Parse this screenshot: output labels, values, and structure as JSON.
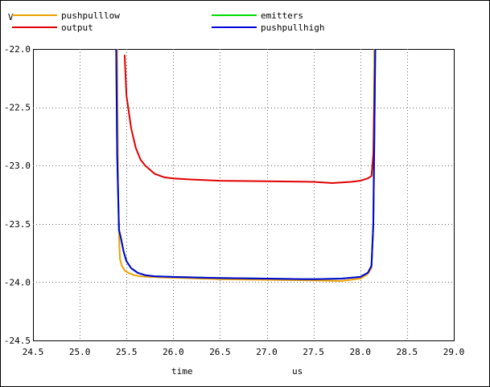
{
  "chart_data": {
    "type": "line",
    "ylabel_unit": "V",
    "xlabel": "time",
    "xunit": "us",
    "xlim": [
      24.5,
      29.0
    ],
    "ylim": [
      -24.5,
      -22.0
    ],
    "xticks": [
      "24.5",
      "25.0",
      "25.5",
      "26.0",
      "26.5",
      "27.0",
      "27.5",
      "28.0",
      "28.5",
      "29.0"
    ],
    "yticks": [
      "-22.0",
      "-22.5",
      "-23.0",
      "-23.5",
      "-24.0",
      "-24.5"
    ],
    "grid": true,
    "legend_position": "top",
    "series": [
      {
        "name": "pushpulllow",
        "color": "#f0a000",
        "x": [
          25.4,
          25.41,
          25.42,
          25.43,
          25.45,
          25.48,
          25.52,
          25.58,
          25.65,
          25.75,
          25.9,
          26.1,
          26.5,
          27.0,
          27.5,
          27.8,
          28.0,
          28.08,
          28.12,
          28.14,
          28.15
        ],
        "y": [
          -22.0,
          -23.2,
          -23.6,
          -23.8,
          -23.86,
          -23.9,
          -23.92,
          -23.94,
          -23.95,
          -23.955,
          -23.96,
          -23.965,
          -23.975,
          -23.98,
          -23.985,
          -23.99,
          -23.97,
          -23.93,
          -23.88,
          -23.5,
          -22.0
        ]
      },
      {
        "name": "output",
        "color": "#e00000",
        "x": [
          25.48,
          25.5,
          25.55,
          25.6,
          25.65,
          25.7,
          25.8,
          25.9,
          26.0,
          26.2,
          26.5,
          27.0,
          27.5,
          27.7,
          27.9,
          28.0,
          28.08,
          28.12,
          28.14,
          28.15,
          28.16
        ],
        "y": [
          -22.05,
          -22.4,
          -22.68,
          -22.85,
          -22.95,
          -23.0,
          -23.07,
          -23.1,
          -23.11,
          -23.12,
          -23.13,
          -23.135,
          -23.14,
          -23.15,
          -23.14,
          -23.13,
          -23.11,
          -23.09,
          -22.9,
          -22.4,
          -22.0
        ]
      },
      {
        "name": "emitters",
        "color": "#00dd00",
        "x": [
          25.39,
          25.4,
          25.42,
          25.44,
          25.47,
          25.5,
          25.55,
          25.62,
          25.7,
          25.8,
          26.0,
          26.5,
          27.0,
          27.5,
          27.8,
          28.0,
          28.08,
          28.12,
          28.14,
          28.15,
          28.16
        ],
        "y": [
          -22.0,
          -22.9,
          -23.55,
          -23.62,
          -23.74,
          -23.82,
          -23.88,
          -23.92,
          -23.94,
          -23.95,
          -23.955,
          -23.965,
          -23.97,
          -23.975,
          -23.97,
          -23.955,
          -23.92,
          -23.86,
          -23.5,
          -22.8,
          -22.0
        ]
      },
      {
        "name": "pushpullhigh",
        "color": "#0000dd",
        "x": [
          25.39,
          25.4,
          25.42,
          25.44,
          25.47,
          25.5,
          25.55,
          25.62,
          25.7,
          25.8,
          26.0,
          26.5,
          27.0,
          27.5,
          27.8,
          28.0,
          28.08,
          28.12,
          28.14,
          28.15,
          28.16
        ],
        "y": [
          -22.0,
          -22.9,
          -23.55,
          -23.62,
          -23.74,
          -23.82,
          -23.88,
          -23.92,
          -23.94,
          -23.95,
          -23.955,
          -23.965,
          -23.97,
          -23.975,
          -23.97,
          -23.955,
          -23.92,
          -23.86,
          -23.5,
          -22.8,
          -22.0
        ]
      }
    ]
  }
}
